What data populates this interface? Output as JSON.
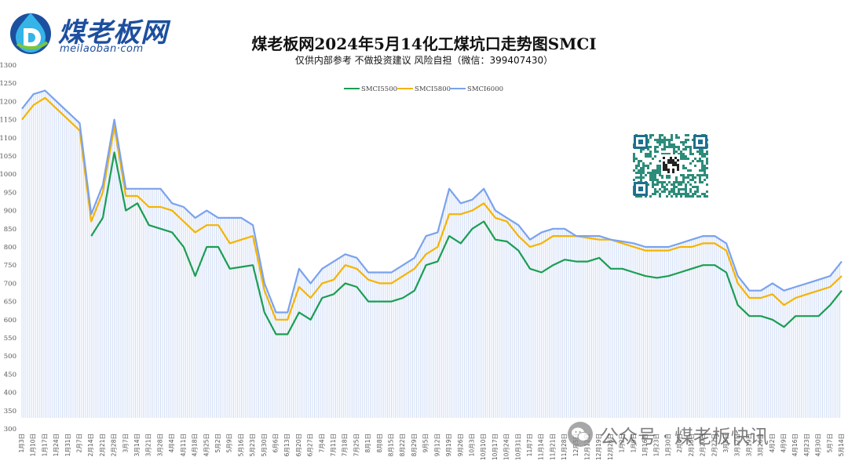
{
  "logo": {
    "text_cn": "煤老板网",
    "text_en": "meilaoban·com",
    "icon": "drop-d-logo-icon"
  },
  "watermark": {
    "icon": "wechat-icon",
    "text": "公众号 · 煤老板快讯"
  },
  "qr_code": {
    "icon": "qr-code-icon"
  },
  "colors": {
    "SMCI5500": "#1a9e52",
    "SMCI5800": "#f5b400",
    "SMCI6000": "#7aa2ee",
    "fill": "#cfdcf6"
  },
  "chart_data": {
    "type": "line",
    "title": "煤老板网2024年5月14化工煤坑口走势图SMCI",
    "subtitle": "仅供内部参考 不做投资建议 风险自担（微信：399407430）",
    "xlabel": "",
    "ylabel": "",
    "ylim": [
      300,
      1300
    ],
    "yticks": [
      300,
      350,
      400,
      450,
      500,
      550,
      600,
      650,
      700,
      750,
      800,
      850,
      900,
      950,
      1000,
      1050,
      1100,
      1150,
      1200,
      1250,
      1300
    ],
    "grid": false,
    "legend_position": "top-center",
    "categories": [
      "1月3日",
      "1月10日",
      "1月17日",
      "1月24日",
      "1月31日",
      "2月7日",
      "2月14日",
      "2月21日",
      "2月28日",
      "3月7日",
      "3月14日",
      "3月21日",
      "3月28日",
      "4月4日",
      "4月11日",
      "4月18日",
      "4月25日",
      "5月2日",
      "5月9日",
      "5月16日",
      "5月23日",
      "5月30日",
      "6月6日",
      "6月13日",
      "6月20日",
      "6月27日",
      "7月4日",
      "7月11日",
      "7月18日",
      "7月25日",
      "8月1日",
      "8月8日",
      "8月15日",
      "8月22日",
      "8月29日",
      "9月5日",
      "9月12日",
      "9月19日",
      "9月26日",
      "10月3日",
      "10月10日",
      "10月17日",
      "10月24日",
      "10月31日",
      "11月7日",
      "11月14日",
      "11月21日",
      "11月28日",
      "12月5日",
      "12月12日",
      "12月19日",
      "12月26日",
      "1月2日",
      "1月9日",
      "1月16日",
      "1月23日",
      "1月30日",
      "2月6日",
      "2月13日",
      "2月20日",
      "2月27日",
      "3月5日",
      "3月12日",
      "3月19日",
      "3月26日",
      "4月2日",
      "4月9日",
      "4月16日",
      "4月23日",
      "4月30日",
      "5月7日",
      "5月14日"
    ],
    "series": [
      {
        "name": "SMCI5500",
        "values": [
          null,
          null,
          null,
          null,
          null,
          null,
          830,
          880,
          1060,
          900,
          920,
          860,
          850,
          840,
          800,
          720,
          800,
          800,
          740,
          745,
          750,
          620,
          560,
          560,
          620,
          600,
          660,
          670,
          700,
          690,
          650,
          650,
          650,
          660,
          680,
          750,
          760,
          830,
          810,
          850,
          870,
          820,
          815,
          790,
          740,
          730,
          750,
          765,
          760,
          760,
          770,
          740,
          740,
          730,
          720,
          715,
          720,
          730,
          740,
          750,
          750,
          730,
          640,
          610,
          610,
          600,
          580,
          610,
          610,
          610,
          640,
          680
        ]
      },
      {
        "name": "SMCI5800",
        "values": [
          1150,
          1190,
          1210,
          1180,
          1150,
          1120,
          870,
          950,
          1130,
          940,
          940,
          910,
          910,
          900,
          870,
          840,
          860,
          860,
          810,
          820,
          830,
          680,
          600,
          600,
          690,
          660,
          700,
          710,
          750,
          740,
          710,
          700,
          700,
          720,
          740,
          780,
          800,
          890,
          890,
          900,
          920,
          880,
          870,
          830,
          800,
          810,
          830,
          830,
          830,
          825,
          820,
          820,
          810,
          800,
          790,
          790,
          790,
          800,
          800,
          810,
          810,
          790,
          700,
          660,
          660,
          670,
          640,
          660,
          670,
          680,
          690,
          720
        ]
      },
      {
        "name": "SMCI6000",
        "values": [
          1180,
          1220,
          1230,
          1200,
          1170,
          1140,
          890,
          970,
          1150,
          960,
          960,
          960,
          960,
          920,
          910,
          880,
          900,
          880,
          880,
          880,
          860,
          700,
          620,
          620,
          740,
          700,
          740,
          760,
          780,
          770,
          730,
          730,
          730,
          750,
          770,
          830,
          840,
          960,
          920,
          930,
          960,
          900,
          880,
          860,
          820,
          840,
          850,
          850,
          830,
          830,
          830,
          820,
          815,
          810,
          800,
          800,
          800,
          810,
          820,
          830,
          830,
          810,
          720,
          680,
          680,
          700,
          680,
          690,
          700,
          710,
          720,
          760
        ]
      }
    ]
  }
}
